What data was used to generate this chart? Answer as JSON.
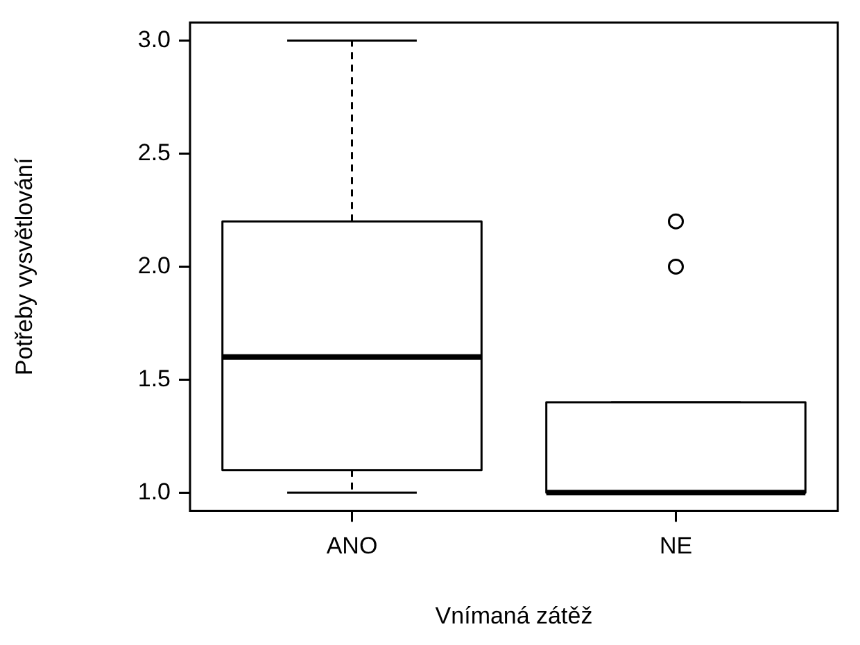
{
  "chart_data": {
    "type": "box",
    "xlabel": "Vnímaná zátěž",
    "ylabel": "Potřeby vysvětlování",
    "categories": [
      "ANO",
      "NE"
    ],
    "boxes": [
      {
        "low": 1.0,
        "q1": 1.1,
        "median": 1.6,
        "q3": 2.2,
        "high": 3.0
      },
      {
        "low": 1.0,
        "q1": 1.0,
        "median": 1.0,
        "q3": 1.4,
        "high": 1.4,
        "outliers": [
          2.0,
          2.2
        ]
      }
    ],
    "ylim": [
      0.92,
      3.08
    ],
    "yticks": [
      {
        "value": 1,
        "label": "1.0"
      },
      {
        "value": 1.5,
        "label": "1.5"
      },
      {
        "value": 2,
        "label": "2.0"
      },
      {
        "value": 2.5,
        "label": "2.5"
      },
      {
        "value": 3,
        "label": "3.0"
      }
    ],
    "grid": false
  }
}
